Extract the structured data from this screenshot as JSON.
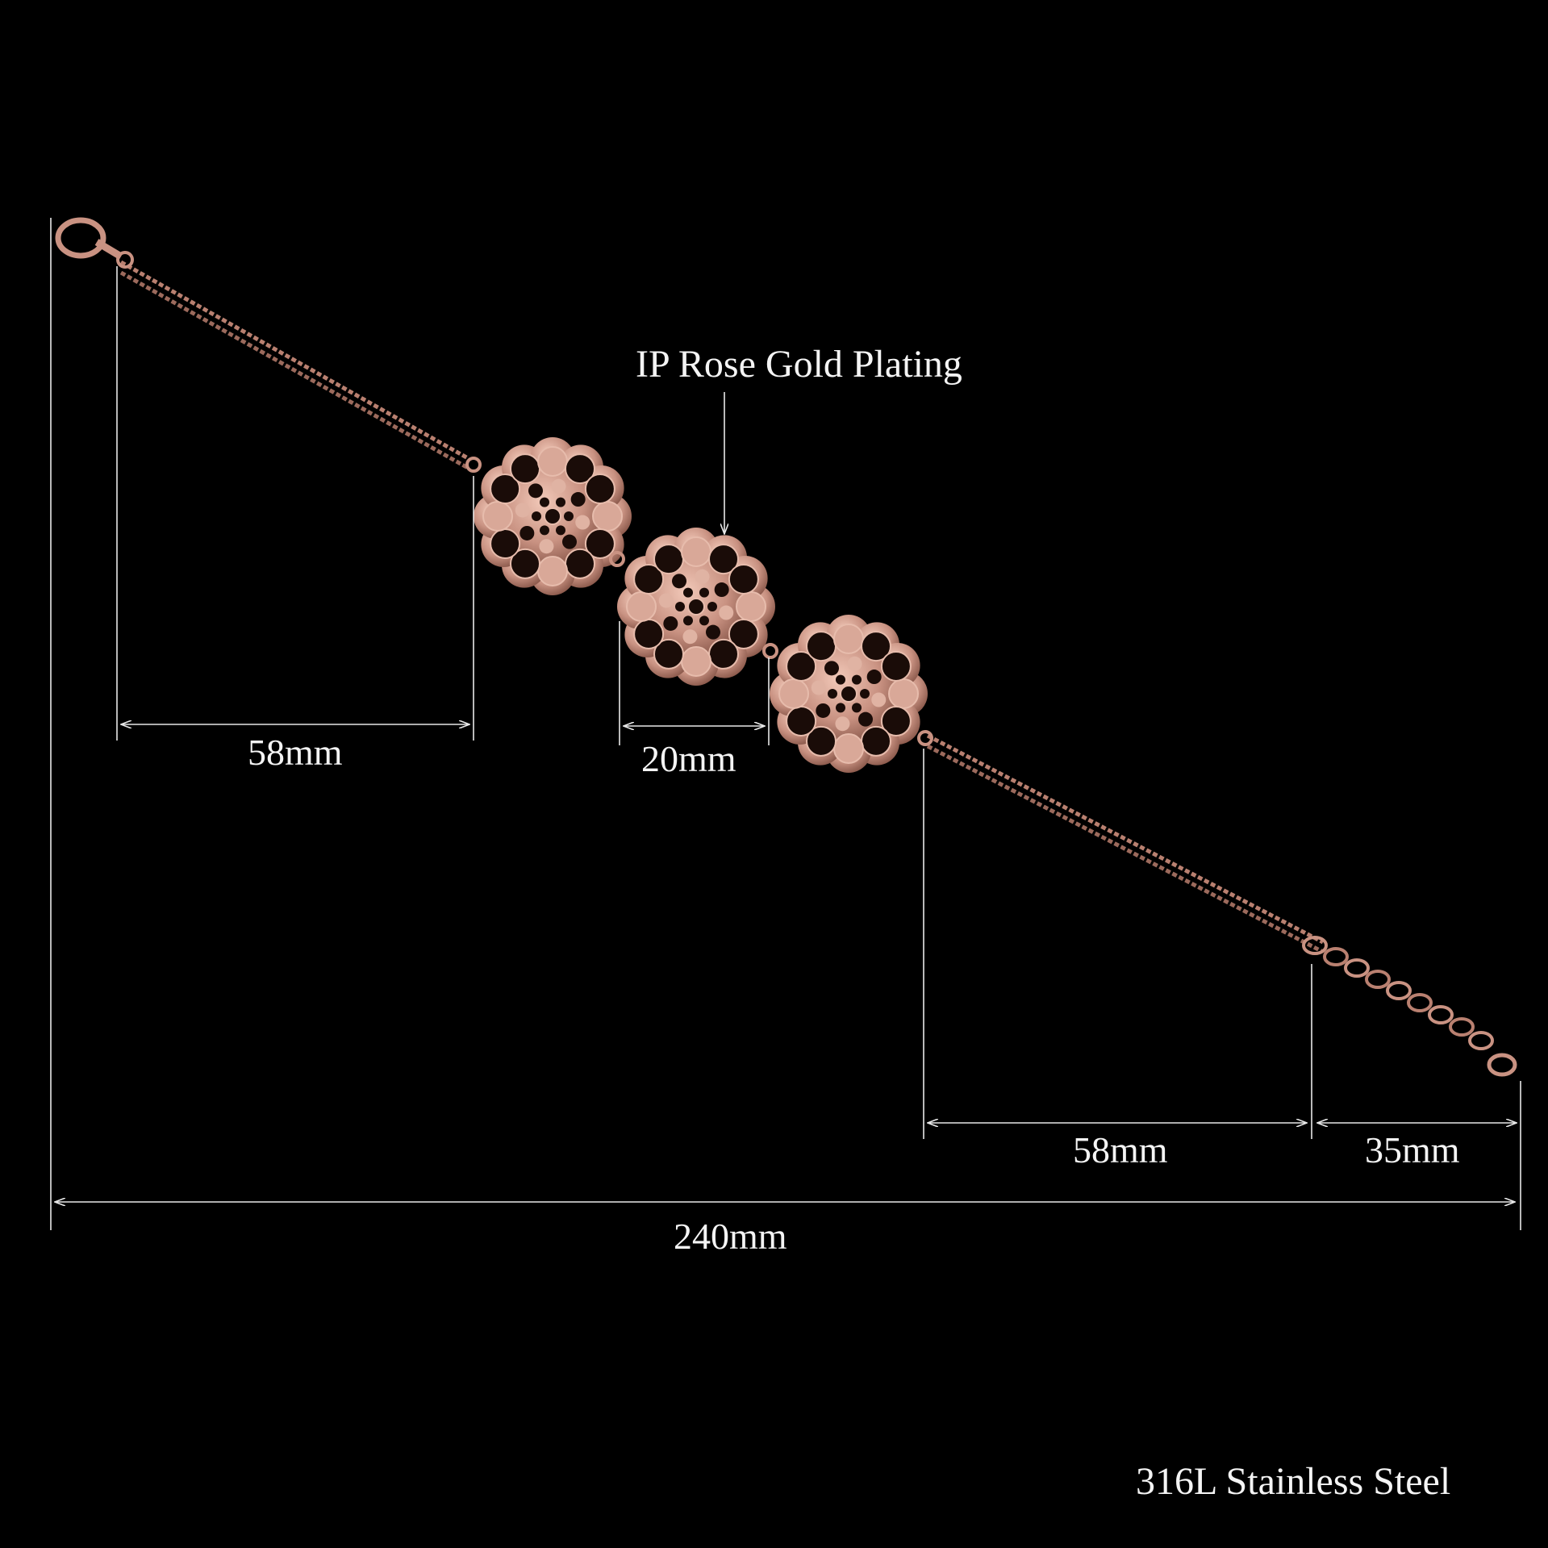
{
  "callout": {
    "plating": "IP Rose Gold Plating"
  },
  "dimensions": {
    "chain_left": "58mm",
    "flower_width": "20mm",
    "chain_right": "58mm",
    "extender": "35mm",
    "total_length": "240mm"
  },
  "material": "316L   Stainless Steel",
  "colors": {
    "background": "#000000",
    "metal": "#c99282",
    "metal_dark": "#6e4034",
    "line": "#e8e8e8"
  }
}
